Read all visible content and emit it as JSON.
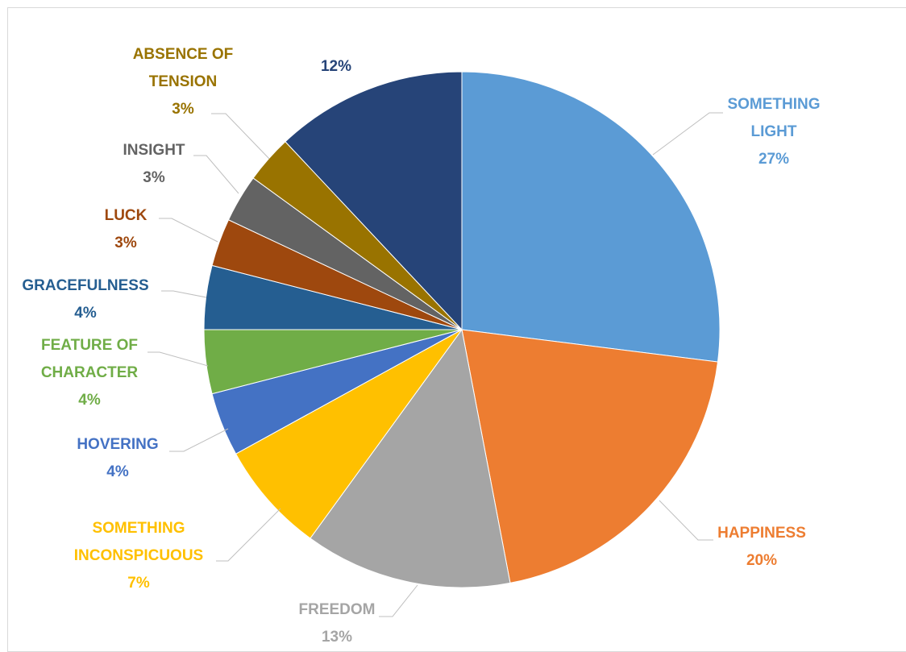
{
  "chart_data": {
    "type": "pie",
    "title": "",
    "start_angle_deg": 0,
    "direction": "clockwise",
    "slices": [
      {
        "label": [
          "SOMETHING",
          "LIGHT"
        ],
        "value": 27,
        "value_label": "27%",
        "color": "#5b9bd5"
      },
      {
        "label": [
          "HAPPINESS"
        ],
        "value": 20,
        "value_label": "20%",
        "color": "#ed7d31"
      },
      {
        "label": [
          "FREEDOM"
        ],
        "value": 13,
        "value_label": "13%",
        "color": "#a5a5a5"
      },
      {
        "label": [
          "SOMETHING",
          "INCONSPICUOUS"
        ],
        "value": 7,
        "value_label": "7%",
        "color": "#ffc000"
      },
      {
        "label": [
          "HOVERING"
        ],
        "value": 4,
        "value_label": "4%",
        "color": "#4472c4"
      },
      {
        "label": [
          "FEATURE OF",
          "CHARACTER"
        ],
        "value": 4,
        "value_label": "4%",
        "color": "#70ad47"
      },
      {
        "label": [
          "GRACEFULNESS"
        ],
        "value": 4,
        "value_label": "4%",
        "color": "#255e91"
      },
      {
        "label": [
          "LUCK"
        ],
        "value": 3,
        "value_label": "3%",
        "color": "#9e480e"
      },
      {
        "label": [
          "INSIGHT"
        ],
        "value": 3,
        "value_label": "3%",
        "color": "#636363"
      },
      {
        "label": [
          "ABSENCE OF",
          "TENSION"
        ],
        "value": 3,
        "value_label": "3%",
        "color": "#997300"
      },
      {
        "label": [],
        "value": 12,
        "value_label": "12%",
        "color": "#264478"
      }
    ]
  }
}
